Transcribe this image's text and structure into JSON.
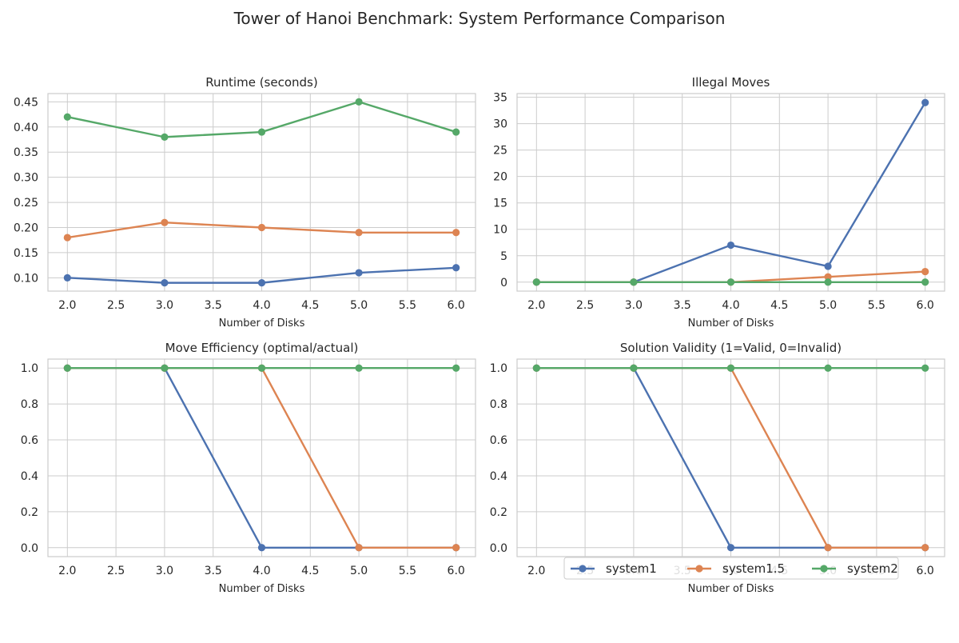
{
  "figure": {
    "title": "Tower of Hanoi Benchmark: System Performance Comparison"
  },
  "series_colors": {
    "system1": "#4c72b0",
    "system1.5": "#dd8452",
    "system2": "#55a868"
  },
  "legend": {
    "placement": "bottom-right",
    "entries": [
      "system1",
      "system1.5",
      "system2"
    ]
  },
  "chart_data": [
    {
      "type": "line",
      "title": "Runtime (seconds)",
      "xlabel": "Number of Disks",
      "ylabel": "",
      "x": [
        2,
        3,
        4,
        5,
        6
      ],
      "xlim": [
        1.8,
        6.2
      ],
      "ylim": [
        0.0735,
        0.4665
      ],
      "xticks": [
        2.0,
        2.5,
        3.0,
        3.5,
        4.0,
        4.5,
        5.0,
        5.5,
        6.0
      ],
      "xtick_labels": [
        "2.0",
        "2.5",
        "3.0",
        "3.5",
        "4.0",
        "4.5",
        "5.0",
        "5.5",
        "6.0"
      ],
      "yticks": [
        0.1,
        0.15,
        0.2,
        0.25,
        0.3,
        0.35,
        0.4,
        0.45
      ],
      "ytick_labels": [
        "0.10",
        "0.15",
        "0.20",
        "0.25",
        "0.30",
        "0.35",
        "0.40",
        "0.45"
      ],
      "grid": true,
      "series": [
        {
          "name": "system1",
          "values": [
            0.1,
            0.09,
            0.09,
            0.11,
            0.12
          ]
        },
        {
          "name": "system1.5",
          "values": [
            0.18,
            0.21,
            0.2,
            0.19,
            0.19
          ]
        },
        {
          "name": "system2",
          "values": [
            0.42,
            0.38,
            0.39,
            0.45,
            0.39
          ]
        }
      ]
    },
    {
      "type": "line",
      "title": "Illegal Moves",
      "xlabel": "Number of Disks",
      "ylabel": "",
      "x": [
        2,
        3,
        4,
        5,
        6
      ],
      "xlim": [
        1.8,
        6.2
      ],
      "ylim": [
        -1.7,
        35.7
      ],
      "xticks": [
        2.0,
        2.5,
        3.0,
        3.5,
        4.0,
        4.5,
        5.0,
        5.5,
        6.0
      ],
      "xtick_labels": [
        "2.0",
        "2.5",
        "3.0",
        "3.5",
        "4.0",
        "4.5",
        "5.0",
        "5.5",
        "6.0"
      ],
      "yticks": [
        0,
        5,
        10,
        15,
        20,
        25,
        30,
        35
      ],
      "ytick_labels": [
        "0",
        "5",
        "10",
        "15",
        "20",
        "25",
        "30",
        "35"
      ],
      "grid": true,
      "series": [
        {
          "name": "system1",
          "values": [
            0,
            0,
            7,
            3,
            34
          ]
        },
        {
          "name": "system1.5",
          "values": [
            0,
            0,
            0,
            1,
            2
          ]
        },
        {
          "name": "system2",
          "values": [
            0,
            0,
            0,
            0,
            0
          ]
        }
      ]
    },
    {
      "type": "line",
      "title": "Move Efficiency (optimal/actual)",
      "xlabel": "Number of Disks",
      "ylabel": "",
      "x": [
        2,
        3,
        4,
        5,
        6
      ],
      "xlim": [
        1.8,
        6.2
      ],
      "ylim": [
        -0.05,
        1.05
      ],
      "xticks": [
        2.0,
        2.5,
        3.0,
        3.5,
        4.0,
        4.5,
        5.0,
        5.5,
        6.0
      ],
      "xtick_labels": [
        "2.0",
        "2.5",
        "3.0",
        "3.5",
        "4.0",
        "4.5",
        "5.0",
        "5.5",
        "6.0"
      ],
      "yticks": [
        0.0,
        0.2,
        0.4,
        0.6,
        0.8,
        1.0
      ],
      "ytick_labels": [
        "0.0",
        "0.2",
        "0.4",
        "0.6",
        "0.8",
        "1.0"
      ],
      "grid": true,
      "series": [
        {
          "name": "system1",
          "values": [
            1,
            1,
            0,
            0,
            0
          ]
        },
        {
          "name": "system1.5",
          "values": [
            1,
            1,
            1,
            0,
            0
          ]
        },
        {
          "name": "system2",
          "values": [
            1,
            1,
            1,
            1,
            1
          ]
        }
      ]
    },
    {
      "type": "line",
      "title": "Solution Validity (1=Valid, 0=Invalid)",
      "xlabel": "Number of Disks",
      "ylabel": "",
      "x": [
        2,
        3,
        4,
        5,
        6
      ],
      "xlim": [
        1.8,
        6.2
      ],
      "ylim": [
        -0.05,
        1.05
      ],
      "xticks": [
        2.0,
        2.5,
        3.0,
        3.5,
        4.0,
        4.5,
        5.0,
        5.5,
        6.0
      ],
      "xtick_labels": [
        "2.0",
        "2.5",
        "3.0",
        "3.5",
        "4.0",
        "4.5",
        "5.0",
        "5.5",
        "6.0"
      ],
      "yticks": [
        0.0,
        0.2,
        0.4,
        0.6,
        0.8,
        1.0
      ],
      "ytick_labels": [
        "0.0",
        "0.2",
        "0.4",
        "0.6",
        "0.8",
        "1.0"
      ],
      "grid": true,
      "series": [
        {
          "name": "system1",
          "values": [
            1,
            1,
            0,
            0,
            0
          ]
        },
        {
          "name": "system1.5",
          "values": [
            1,
            1,
            1,
            0,
            0
          ]
        },
        {
          "name": "system2",
          "values": [
            1,
            1,
            1,
            1,
            1
          ]
        }
      ]
    }
  ]
}
